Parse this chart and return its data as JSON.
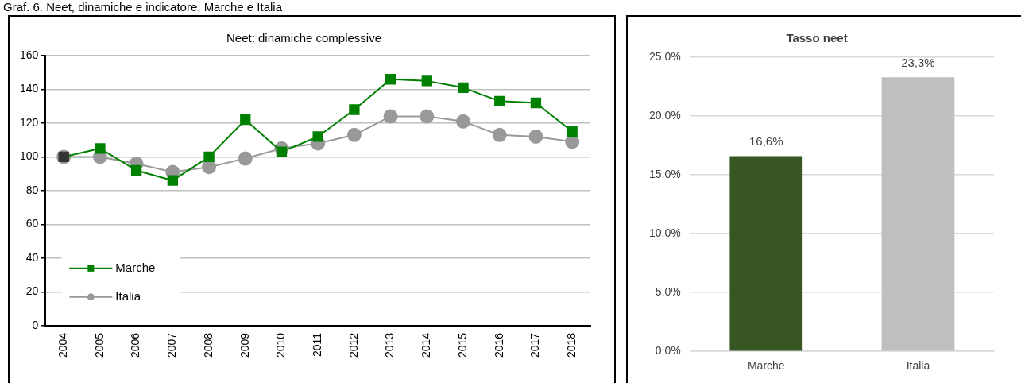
{
  "chart_data": [
    {
      "type": "line",
      "title": "Neet: dinamiche complessive",
      "annotations": [
        "Graf. 6. Neet, dinamiche e indicatore, Marche e Italia"
      ],
      "categories": [
        "2004",
        "2005",
        "2006",
        "2007",
        "2008",
        "2009",
        "2010",
        "2011",
        "2012",
        "2013",
        "2014",
        "2015",
        "2016",
        "2017",
        "2018"
      ],
      "series": [
        {
          "name": "Marche",
          "color": "#008000",
          "marker": "square",
          "colors": [
            "#333333",
            "#008000",
            "#008000",
            "#008000",
            "#008000",
            "#008000",
            "#008000",
            "#008000",
            "#008000",
            "#008000",
            "#008000",
            "#008000",
            "#008000",
            "#008000",
            "#008000"
          ],
          "values": [
            100,
            105,
            92,
            86,
            100,
            122,
            103,
            112,
            128,
            146,
            145,
            141,
            133,
            132,
            115
          ]
        },
        {
          "name": "Italia",
          "color": "#999999",
          "marker": "circle",
          "values": [
            100,
            100,
            96,
            91,
            94,
            99,
            105,
            108,
            113,
            124,
            124,
            121,
            113,
            112,
            109
          ]
        }
      ],
      "ylim": [
        0,
        160
      ],
      "yticks": [
        0,
        20,
        40,
        60,
        80,
        100,
        120,
        140,
        160
      ],
      "grid": "y",
      "legend": "bottom left"
    },
    {
      "type": "bar",
      "title": "Tasso neet",
      "categories": [
        "Marche",
        "Italia"
      ],
      "values": [
        16.6,
        23.3
      ],
      "colors": [
        "#375623",
        "#bfbfbf"
      ],
      "value_labels": [
        "16,6%",
        "23,3%"
      ],
      "ylim": [
        0,
        25
      ],
      "yticks": [
        {
          "value": 0,
          "label": "0,0%"
        },
        {
          "value": 5,
          "label": "5,0%"
        },
        {
          "value": 10,
          "label": "10,0%"
        },
        {
          "value": 15,
          "label": "15,0%"
        },
        {
          "value": 20,
          "label": "20,0%"
        },
        {
          "value": 25,
          "label": "25,0%"
        }
      ],
      "grid": "y",
      "legend": false
    }
  ]
}
